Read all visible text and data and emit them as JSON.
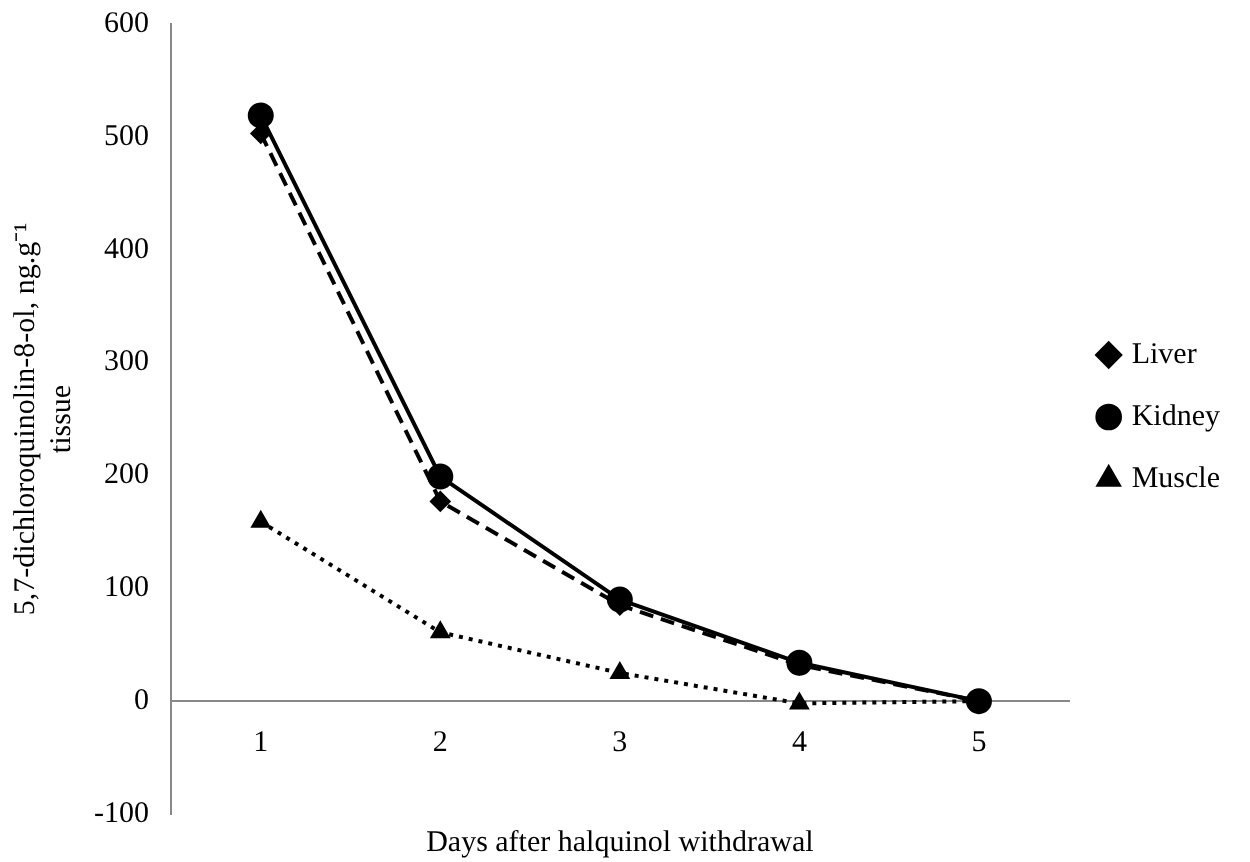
{
  "chart_data": {
    "type": "line",
    "xlabel": "Days after halquinol withdrawal",
    "ylabel": "5,7-dichloroquinolin-8-ol, ng.g⁻¹ tissue",
    "categories": [
      "1",
      "2",
      "3",
      "4",
      "5"
    ],
    "series": [
      {
        "name": "Liver",
        "color": "#000000",
        "values": [
          503,
          177,
          85,
          32,
          0
        ],
        "marker": "diamond",
        "line_style": "dashed"
      },
      {
        "name": "Kidney",
        "color": "#000000",
        "values": [
          519,
          199,
          90,
          34,
          0
        ],
        "marker": "circle",
        "line_style": "solid"
      },
      {
        "name": "Muscle",
        "color": "#000000",
        "values": [
          159,
          61,
          25,
          -2,
          0
        ],
        "marker": "triangle",
        "line_style": "dotted"
      }
    ],
    "ylim": [
      -100,
      600
    ],
    "yticks": [
      -100,
      0,
      100,
      200,
      300,
      400,
      500,
      600
    ],
    "grid": false,
    "legend": "right"
  }
}
